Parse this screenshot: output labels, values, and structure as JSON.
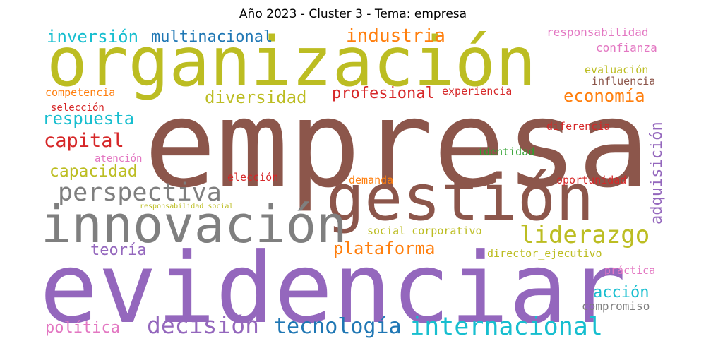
{
  "title": "Año 2023 - Cluster 3 - Tema: empresa",
  "colors": {
    "olive": "#bcbd22",
    "brown": "#8c564b",
    "purple": "#9467bd",
    "gray": "#7f7f7f",
    "cyan": "#17becf",
    "blue": "#1f77b4",
    "orange": "#ff7f0e",
    "red": "#d62728",
    "pink": "#e377c2",
    "green": "#2ca02c"
  },
  "words": [
    {
      "text": "empresa",
      "weight": 1.0,
      "color": "brown"
    },
    {
      "text": "organización",
      "weight": 0.75,
      "color": "olive"
    },
    {
      "text": "evidenciar",
      "weight": 0.9,
      "color": "purple"
    },
    {
      "text": "gestión",
      "weight": 0.62,
      "color": "brown"
    },
    {
      "text": "innovación",
      "weight": 0.55,
      "color": "gray"
    },
    {
      "text": "perspectiva",
      "weight": 0.32,
      "color": "gray"
    },
    {
      "text": "liderazgo",
      "weight": 0.3,
      "color": "olive"
    },
    {
      "text": "internacional",
      "weight": 0.3,
      "color": "cyan"
    },
    {
      "text": "decisión",
      "weight": 0.28,
      "color": "purple"
    },
    {
      "text": "tecnología",
      "weight": 0.27,
      "color": "blue"
    },
    {
      "text": "plataforma",
      "weight": 0.22,
      "color": "orange"
    },
    {
      "text": "capital",
      "weight": 0.22,
      "color": "red"
    },
    {
      "text": "industria",
      "weight": 0.22,
      "color": "orange"
    },
    {
      "text": "inversión",
      "weight": 0.22,
      "color": "cyan"
    },
    {
      "text": "multinacional",
      "weight": 0.22,
      "color": "blue"
    },
    {
      "text": "diversidad",
      "weight": 0.22,
      "color": "olive"
    },
    {
      "text": "economía",
      "weight": 0.21,
      "color": "orange"
    },
    {
      "text": "respuesta",
      "weight": 0.21,
      "color": "cyan"
    },
    {
      "text": "capacidad",
      "weight": 0.2,
      "color": "olive"
    },
    {
      "text": "profesional",
      "weight": 0.2,
      "color": "red"
    },
    {
      "text": "adquisición",
      "weight": 0.2,
      "color": "purple"
    },
    {
      "text": "teoría",
      "weight": 0.2,
      "color": "purple"
    },
    {
      "text": "política",
      "weight": 0.2,
      "color": "pink"
    },
    {
      "text": "acción",
      "weight": 0.2,
      "color": "cyan"
    },
    {
      "text": "responsabilidad",
      "weight": 0.15,
      "color": "pink"
    },
    {
      "text": "confianza",
      "weight": 0.15,
      "color": "pink"
    },
    {
      "text": "evaluación",
      "weight": 0.15,
      "color": "olive"
    },
    {
      "text": "influencia",
      "weight": 0.15,
      "color": "brown"
    },
    {
      "text": "competencia",
      "weight": 0.14,
      "color": "orange"
    },
    {
      "text": "experiencia",
      "weight": 0.14,
      "color": "red"
    },
    {
      "text": "selección",
      "weight": 0.14,
      "color": "red"
    },
    {
      "text": "diferencia",
      "weight": 0.14,
      "color": "red"
    },
    {
      "text": "atención",
      "weight": 0.14,
      "color": "pink"
    },
    {
      "text": "identidad",
      "weight": 0.14,
      "color": "green"
    },
    {
      "text": "elección",
      "weight": 0.14,
      "color": "red"
    },
    {
      "text": "demanda",
      "weight": 0.14,
      "color": "orange"
    },
    {
      "text": "oportunidad",
      "weight": 0.14,
      "color": "red"
    },
    {
      "text": "responsabilidad_social",
      "weight": 0.1,
      "color": "olive"
    },
    {
      "text": "social_corporativo",
      "weight": 0.15,
      "color": "olive"
    },
    {
      "text": "director_ejecutivo",
      "weight": 0.14,
      "color": "olive"
    },
    {
      "text": "práctica",
      "weight": 0.14,
      "color": "pink"
    },
    {
      "text": "compromiso",
      "weight": 0.15,
      "color": "gray"
    }
  ]
}
